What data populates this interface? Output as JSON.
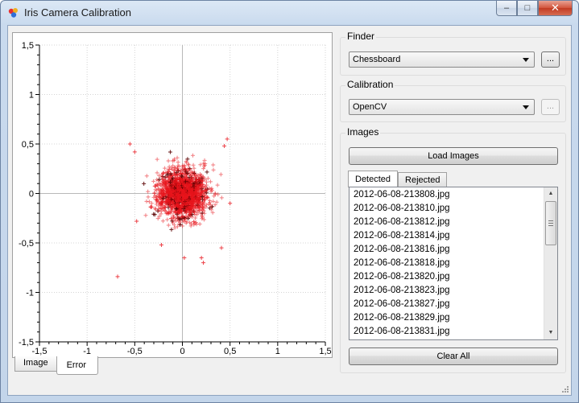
{
  "window": {
    "title": "Iris Camera Calibration",
    "minimize_glyph": "–",
    "maximize_glyph": "□",
    "close_glyph": "✕"
  },
  "colors": {
    "accent_point": "#e8141c",
    "point_dark": "#5a0000",
    "grid": "#d4d4d4"
  },
  "plot_tabs": [
    {
      "label": "Image",
      "active": false
    },
    {
      "label": "Error",
      "active": true
    }
  ],
  "finder": {
    "title": "Finder",
    "selected": "Chessboard",
    "browse_label": "..."
  },
  "calibration": {
    "title": "Calibration",
    "selected": "OpenCV",
    "browse_label": "..."
  },
  "images": {
    "title": "Images",
    "load_label": "Load Images",
    "tabs": [
      {
        "label": "Detected",
        "active": true
      },
      {
        "label": "Rejected",
        "active": false
      }
    ],
    "items": [
      "2012-06-08-213808.jpg",
      "2012-06-08-213810.jpg",
      "2012-06-08-213812.jpg",
      "2012-06-08-213814.jpg",
      "2012-06-08-213816.jpg",
      "2012-06-08-213818.jpg",
      "2012-06-08-213820.jpg",
      "2012-06-08-213823.jpg",
      "2012-06-08-213827.jpg",
      "2012-06-08-213829.jpg",
      "2012-06-08-213831.jpg"
    ],
    "clear_label": "Clear All"
  },
  "chart_data": {
    "type": "scatter",
    "title": "",
    "xlabel": "",
    "ylabel": "",
    "xlim": [
      -1.5,
      1.5
    ],
    "ylim": [
      -1.5,
      1.5
    ],
    "grid": true,
    "xticks": [
      "-1,5",
      "-1",
      "-0,5",
      "0",
      "0,5",
      "1",
      "1,5"
    ],
    "yticks": [
      "1,5",
      "1",
      "0,5",
      "0",
      "-0,5",
      "-1",
      "-1,5"
    ],
    "marker": "+",
    "cluster": {
      "center": [
        0.0,
        0.0
      ],
      "std": [
        0.13,
        0.12
      ],
      "count": 1800
    },
    "outliers": [
      [
        -0.68,
        -0.84
      ],
      [
        0.2,
        -0.65
      ],
      [
        0.22,
        -0.7
      ],
      [
        -0.22,
        -0.52
      ],
      [
        0.02,
        -0.65
      ],
      [
        0.47,
        0.55
      ],
      [
        -0.55,
        0.5
      ],
      [
        0.44,
        0.48
      ],
      [
        -0.5,
        0.42
      ],
      [
        0.5,
        -0.1
      ],
      [
        -0.48,
        -0.28
      ],
      [
        0.41,
        -0.55
      ]
    ]
  }
}
